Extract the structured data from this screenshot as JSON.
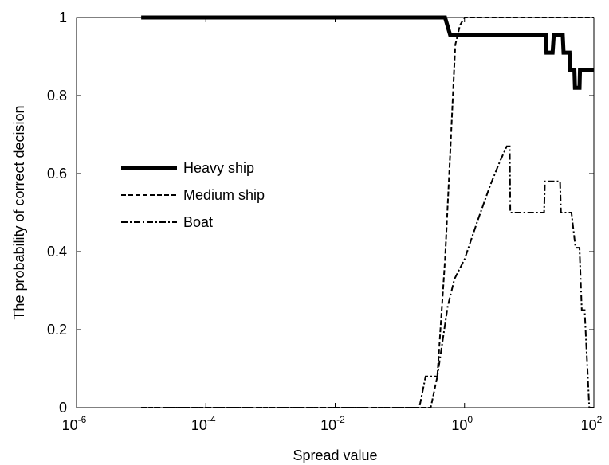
{
  "chart_data": {
    "type": "line",
    "xscale": "log",
    "xlabel": "Spread value",
    "ylabel": "The probability of correct decision",
    "xlim": [
      1e-06,
      100
    ],
    "ylim": [
      0,
      1
    ],
    "x_ticks": [
      {
        "base": "10",
        "exp": "-6",
        "value": 1e-06
      },
      {
        "base": "10",
        "exp": "-4",
        "value": 0.0001
      },
      {
        "base": "10",
        "exp": "-2",
        "value": 0.01
      },
      {
        "base": "10",
        "exp": "0",
        "value": 1
      },
      {
        "base": "10",
        "exp": "2",
        "value": 100
      }
    ],
    "y_ticks": [
      {
        "label": "0",
        "value": 0
      },
      {
        "label": "0.2",
        "value": 0.2
      },
      {
        "label": "0.4",
        "value": 0.4
      },
      {
        "label": "0.6",
        "value": 0.6
      },
      {
        "label": "0.8",
        "value": 0.8
      },
      {
        "label": "1",
        "value": 1
      }
    ],
    "legend_position": "center-left",
    "grid": false,
    "series": [
      {
        "name": "Heavy ship",
        "style": "solid-thick",
        "color": "#000000",
        "points": [
          [
            1e-05,
            1
          ],
          [
            0.5,
            1
          ],
          [
            0.6,
            0.955
          ],
          [
            18,
            0.955
          ],
          [
            18.5,
            0.91
          ],
          [
            23,
            0.91
          ],
          [
            24,
            0.955
          ],
          [
            33,
            0.955
          ],
          [
            34,
            0.91
          ],
          [
            42,
            0.91
          ],
          [
            43,
            0.865
          ],
          [
            50,
            0.865
          ],
          [
            51,
            0.82
          ],
          [
            60,
            0.82
          ],
          [
            61,
            0.865
          ],
          [
            100,
            0.865
          ]
        ]
      },
      {
        "name": "Medium ship",
        "style": "dashed",
        "color": "#000000",
        "points": [
          [
            1e-05,
            0
          ],
          [
            0.3,
            0
          ],
          [
            0.38,
            0.08
          ],
          [
            0.5,
            0.38
          ],
          [
            0.6,
            0.65
          ],
          [
            0.72,
            0.93
          ],
          [
            0.85,
            0.98
          ],
          [
            1.0,
            1.0
          ],
          [
            100,
            1.0
          ]
        ]
      },
      {
        "name": "Boat",
        "style": "dashdot",
        "color": "#000000",
        "points": [
          [
            1e-05,
            0
          ],
          [
            0.2,
            0
          ],
          [
            0.25,
            0.08
          ],
          [
            0.38,
            0.08
          ],
          [
            0.55,
            0.26
          ],
          [
            0.7,
            0.33
          ],
          [
            1.0,
            0.38
          ],
          [
            1.6,
            0.48
          ],
          [
            2.5,
            0.57
          ],
          [
            3.5,
            0.63
          ],
          [
            4.5,
            0.67
          ],
          [
            5.0,
            0.67
          ],
          [
            5.1,
            0.5
          ],
          [
            17,
            0.5
          ],
          [
            17.5,
            0.58
          ],
          [
            30,
            0.58
          ],
          [
            31,
            0.5
          ],
          [
            45,
            0.5
          ],
          [
            52,
            0.41
          ],
          [
            60,
            0.41
          ],
          [
            65,
            0.25
          ],
          [
            72,
            0.25
          ],
          [
            85,
            0
          ],
          [
            100,
            0
          ]
        ]
      }
    ]
  }
}
